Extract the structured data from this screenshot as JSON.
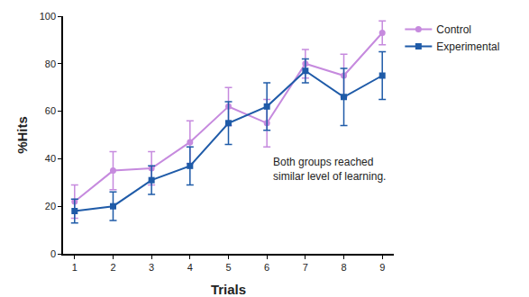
{
  "chart_data": {
    "type": "line",
    "x_label": "Trials",
    "y_label": "%Hits",
    "x": [
      1,
      2,
      3,
      4,
      5,
      6,
      7,
      8,
      9
    ],
    "series": [
      {
        "name": "Control",
        "color": "#c68ade",
        "marker": "circle",
        "values": [
          22,
          35,
          36,
          47,
          62,
          55,
          80,
          75,
          93
        ],
        "error": [
          7,
          8,
          7,
          9,
          8,
          10,
          6,
          9,
          5
        ]
      },
      {
        "name": "Experimental",
        "color": "#1f5ba8",
        "marker": "square",
        "values": [
          18,
          20,
          31,
          37,
          55,
          62,
          77,
          66,
          75
        ],
        "error": [
          5,
          6,
          6,
          8,
          9,
          10,
          5,
          12,
          10
        ]
      }
    ],
    "xlim": [
      0.7,
      9.3
    ],
    "xticks": [
      1,
      2,
      3,
      4,
      5,
      6,
      7,
      8,
      9
    ],
    "ylim": [
      0,
      100
    ],
    "yticks": [
      0,
      20,
      40,
      60,
      80,
      100
    ],
    "grid": false,
    "legend": "upper right",
    "annotations": [
      {
        "text": "Both groups reached\nsimilar level of learning."
      }
    ]
  }
}
